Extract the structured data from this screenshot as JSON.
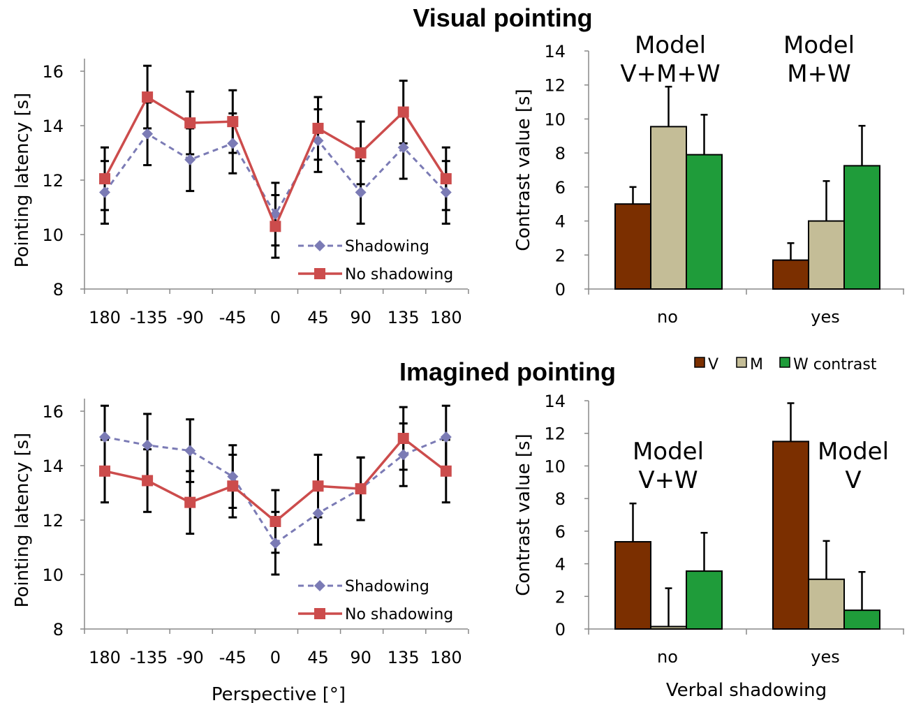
{
  "titles": {
    "visual": "Visual pointing",
    "imagined": "Imagined pointing"
  },
  "colors": {
    "shadowing": "#7b7bb5",
    "no_shadowing": "#cc4c4c",
    "V": "#7b2f00",
    "M": "#c4bd97",
    "W": "#1f9c3a"
  },
  "bar_legend": [
    "V",
    "M",
    "W contrast"
  ],
  "chart_data": [
    {
      "id": "visual-line",
      "type": "line",
      "categories": [
        "180",
        "-135",
        "-90",
        "-45",
        "0",
        "45",
        "90",
        "135",
        "180"
      ],
      "ylabel": "Pointing latency [s]",
      "xlabel": "",
      "ylim": [
        8,
        16
      ],
      "yticks": [
        8,
        10,
        12,
        14,
        16
      ],
      "legend_position": "bottom-right",
      "series": [
        {
          "name": "Shadowing",
          "style": "dashed-diamond",
          "values": [
            11.55,
            13.7,
            12.75,
            13.35,
            10.75,
            13.45,
            11.55,
            13.2,
            11.55
          ],
          "errors": [
            1.15,
            1.15,
            1.15,
            1.1,
            1.15,
            1.15,
            1.15,
            1.15,
            1.15
          ]
        },
        {
          "name": "No shadowing",
          "style": "solid-square",
          "values": [
            12.05,
            15.05,
            14.1,
            14.15,
            10.3,
            13.9,
            13.0,
            14.5,
            12.05
          ],
          "errors": [
            1.15,
            1.15,
            1.15,
            1.15,
            1.15,
            1.15,
            1.15,
            1.15,
            1.15
          ]
        }
      ]
    },
    {
      "id": "visual-bar",
      "type": "bar",
      "categories": [
        "no",
        "yes"
      ],
      "ylabel": "Contrast value [s]",
      "xlabel": "",
      "ylim": [
        0,
        14
      ],
      "yticks": [
        0,
        2,
        4,
        6,
        8,
        10,
        12,
        14
      ],
      "series": [
        {
          "name": "V",
          "values": [
            5.0,
            1.7
          ],
          "errors": [
            1.0,
            1.0
          ]
        },
        {
          "name": "M",
          "values": [
            9.55,
            4.0
          ],
          "errors": [
            2.35,
            2.35
          ]
        },
        {
          "name": "W contrast",
          "values": [
            7.9,
            7.25
          ],
          "errors": [
            2.35,
            2.35
          ]
        }
      ],
      "annotations": [
        {
          "lines": [
            "Model",
            "V+M+W"
          ],
          "category": "no"
        },
        {
          "lines": [
            "Model",
            "M+W"
          ],
          "category": "yes"
        }
      ]
    },
    {
      "id": "imagined-line",
      "type": "line",
      "categories": [
        "180",
        "-135",
        "-90",
        "-45",
        "0",
        "45",
        "90",
        "135",
        "180"
      ],
      "ylabel": "Pointing latency [s]",
      "xlabel": "Perspective [°]",
      "ylim": [
        8,
        16
      ],
      "yticks": [
        8,
        10,
        12,
        14,
        16
      ],
      "legend_position": "bottom-right",
      "series": [
        {
          "name": "Shadowing",
          "style": "dashed-diamond",
          "values": [
            15.05,
            14.75,
            14.55,
            13.6,
            11.15,
            12.25,
            13.15,
            14.4,
            15.05
          ],
          "errors": [
            1.15,
            1.15,
            1.15,
            1.15,
            1.15,
            1.15,
            1.15,
            1.15,
            1.15
          ]
        },
        {
          "name": "No shadowing",
          "style": "solid-square",
          "values": [
            13.8,
            13.45,
            12.65,
            13.25,
            11.95,
            13.25,
            13.15,
            15.0,
            13.8
          ],
          "errors": [
            1.15,
            1.15,
            1.15,
            1.15,
            1.15,
            1.15,
            1.15,
            1.15,
            1.15
          ]
        }
      ]
    },
    {
      "id": "imagined-bar",
      "type": "bar",
      "categories": [
        "no",
        "yes"
      ],
      "ylabel": "Contrast value [s]",
      "xlabel": "Verbal shadowing",
      "ylim": [
        0,
        14
      ],
      "yticks": [
        0,
        2,
        4,
        6,
        8,
        10,
        12,
        14
      ],
      "series": [
        {
          "name": "V",
          "values": [
            5.35,
            11.5
          ],
          "errors": [
            2.35,
            2.35
          ]
        },
        {
          "name": "M",
          "values": [
            0.15,
            3.05
          ],
          "errors": [
            2.35,
            2.35
          ]
        },
        {
          "name": "W contrast",
          "values": [
            3.55,
            1.15
          ],
          "errors": [
            2.35,
            2.35
          ]
        }
      ],
      "annotations": [
        {
          "lines": [
            "Model",
            "V+W"
          ],
          "category": "no"
        },
        {
          "lines": [
            "Model",
            "V"
          ],
          "category": "yes"
        }
      ]
    }
  ]
}
